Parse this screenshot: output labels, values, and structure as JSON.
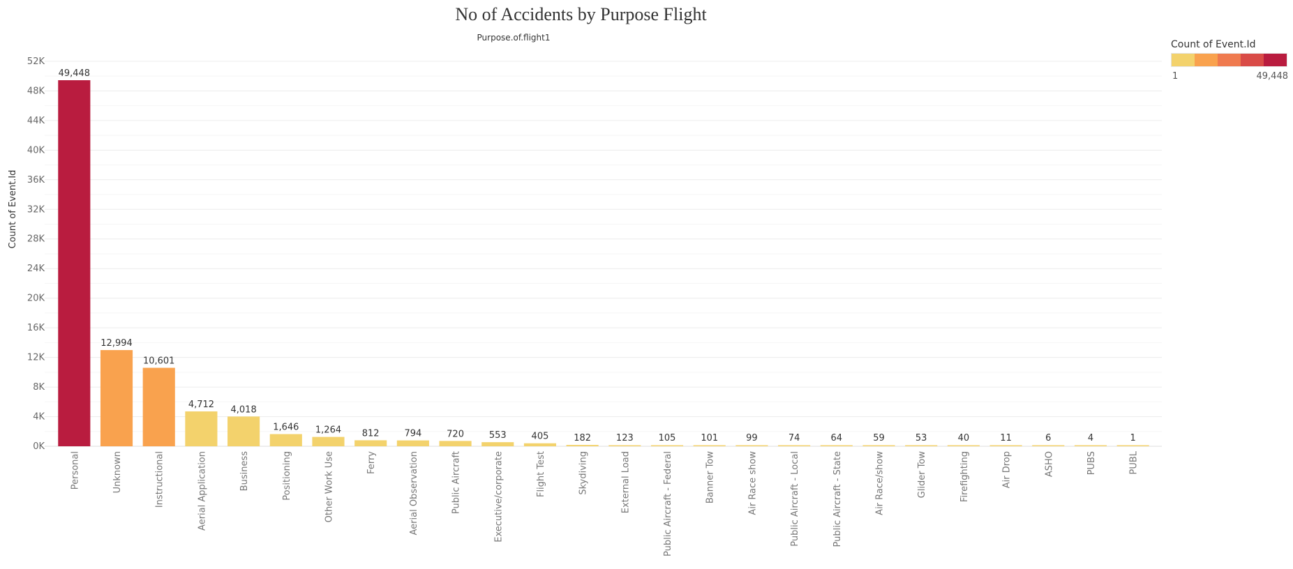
{
  "title": "No of Accidents by Purpose Flight",
  "chart_data": {
    "type": "bar",
    "title": "No of Accidents by Purpose Flight",
    "column_header": "Purpose.of.flight1",
    "xlabel": "",
    "ylabel": "Count of Event.Id",
    "ylim": [
      0,
      53500
    ],
    "yticks": [
      0,
      4000,
      8000,
      12000,
      16000,
      20000,
      24000,
      28000,
      32000,
      36000,
      40000,
      44000,
      48000,
      52000
    ],
    "ytick_labels": [
      "0K",
      "4K",
      "8K",
      "12K",
      "16K",
      "20K",
      "24K",
      "28K",
      "32K",
      "36K",
      "40K",
      "44K",
      "48K",
      "52K"
    ],
    "grid": "horizontal",
    "categories": [
      "Personal",
      "Unknown",
      "Instructional",
      "Aerial Application",
      "Business",
      "Positioning",
      "Other Work Use",
      "Ferry",
      "Aerial Observation",
      "Public Aircraft",
      "Executive/corporate",
      "Flight Test",
      "Skydiving",
      "External Load",
      "Public Aircraft - Federal",
      "Banner Tow",
      "Air Race show",
      "Public Aircraft - Local",
      "Public Aircraft - State",
      "Air Race/show",
      "Glider Tow",
      "Firefighting",
      "Air Drop",
      "ASHO",
      "PUBS",
      "PUBL"
    ],
    "values": [
      49448,
      12994,
      10601,
      4712,
      4018,
      1646,
      1264,
      812,
      794,
      720,
      553,
      405,
      182,
      123,
      105,
      101,
      99,
      74,
      64,
      59,
      53,
      40,
      11,
      6,
      4,
      1
    ],
    "value_labels": [
      "49,448",
      "12,994",
      "10,601",
      "4,712",
      "4,018",
      "1,646",
      "1,264",
      "812",
      "794",
      "720",
      "553",
      "405",
      "182",
      "123",
      "105",
      "101",
      "99",
      "74",
      "64",
      "59",
      "53",
      "40",
      "11",
      "6",
      "4",
      "1"
    ],
    "colors": [
      "#b91c3f",
      "#f9a24e",
      "#f9a24e",
      "#f3d26c",
      "#f3d26c",
      "#f3d26c",
      "#f3d26c",
      "#f3d26c",
      "#f3d26c",
      "#f3d26c",
      "#f3d26c",
      "#f3d26c",
      "#f3d26c",
      "#f3d26c",
      "#f3d26c",
      "#f3d26c",
      "#f3d26c",
      "#f3d26c",
      "#f3d26c",
      "#f3d26c",
      "#f3d26c",
      "#f3d26c",
      "#f3d26c",
      "#f3d26c",
      "#f3d26c",
      "#f3d26c"
    ],
    "legend": {
      "title": "Count of Event.Id",
      "min_label": "1",
      "max_label": "49,448",
      "palette": [
        "#f3d26c",
        "#f9a24e",
        "#ef7a4f",
        "#d94b47",
        "#b91c3f"
      ],
      "placement": "top-right"
    }
  }
}
